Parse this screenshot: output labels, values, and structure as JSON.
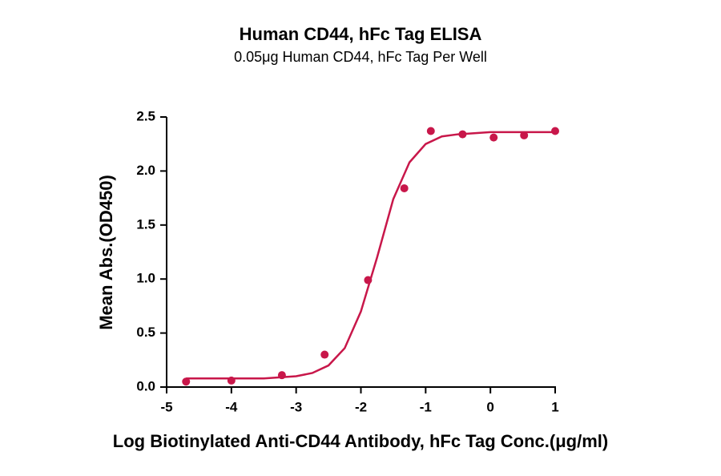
{
  "chart_data": {
    "type": "scatter",
    "title": "Human CD44, hFc Tag ELISA",
    "subtitle": "0.05μg Human CD44, hFc Tag Per Well",
    "x_label": "Log Biotinylated Anti-CD44 Antibody, hFc Tag Conc.(μg/ml)",
    "y_label": "Mean Abs.(OD450)",
    "xlim": [
      -5,
      1
    ],
    "xticks": [
      -5,
      -4,
      -3,
      -2,
      -1,
      0,
      1
    ],
    "ylim": [
      0,
      2.5
    ],
    "yticks": [
      {
        "value": 0,
        "label": "0.0"
      },
      0.5,
      {
        "value": 1,
        "label": "1.0"
      },
      1.5,
      {
        "value": 2,
        "label": "2.0"
      },
      2.5
    ],
    "series": [
      {
        "color": "#c8174a",
        "marker": true,
        "x": [
          -4.7,
          -4.0,
          -3.22,
          -2.56,
          -1.89,
          -1.33,
          -0.92,
          -0.43,
          0.05,
          0.52,
          1.0
        ],
        "values": [
          0.05,
          0.06,
          0.11,
          0.3,
          0.99,
          1.84,
          2.37,
          2.34,
          2.31,
          2.33,
          2.37
        ]
      },
      {
        "color": "#c8174a",
        "line": true,
        "x": [
          -4.7,
          -4.0,
          -3.5,
          -3.0,
          -2.75,
          -2.5,
          -2.25,
          -2.0,
          -1.75,
          -1.5,
          -1.25,
          -1.0,
          -0.75,
          -0.5,
          0,
          0.5,
          1.0
        ],
        "values": [
          0.08,
          0.08,
          0.08,
          0.1,
          0.13,
          0.2,
          0.36,
          0.7,
          1.2,
          1.74,
          2.08,
          2.25,
          2.32,
          2.34,
          2.36,
          2.36,
          2.36
        ]
      }
    ]
  }
}
